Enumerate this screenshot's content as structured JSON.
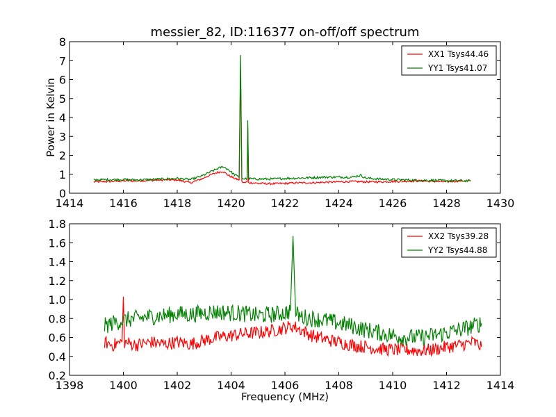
{
  "chart_data": [
    {
      "type": "line",
      "title": "messier_82, ID:116377 on-off/off spectrum",
      "xlabel": "",
      "ylabel": "Power in Kelvin",
      "xlim": [
        1414,
        1430
      ],
      "ylim": [
        0,
        8
      ],
      "xticks": [
        1414,
        1416,
        1418,
        1420,
        1422,
        1424,
        1426,
        1428,
        1430
      ],
      "yticks": [
        0,
        1,
        2,
        3,
        4,
        5,
        6,
        7,
        8
      ],
      "grid": false,
      "legend_position": "top-right",
      "series": [
        {
          "name": "XX1 Tsys44.46",
          "color": "#ff0000",
          "x": [
            1414.9,
            1415.5,
            1416.0,
            1416.5,
            1417.0,
            1417.5,
            1418.0,
            1418.5,
            1418.9,
            1419.2,
            1419.5,
            1419.7,
            1419.9,
            1420.1,
            1420.3,
            1420.35,
            1420.4,
            1420.5,
            1420.6,
            1420.62,
            1420.65,
            1420.8,
            1421.0,
            1421.5,
            1422.0,
            1422.5,
            1423.0,
            1423.5,
            1424.0,
            1424.5,
            1425.0,
            1425.5,
            1426.0,
            1426.5,
            1427.0,
            1427.5,
            1428.0,
            1428.5,
            1428.9
          ],
          "y": [
            0.6,
            0.62,
            0.65,
            0.65,
            0.68,
            0.7,
            0.7,
            0.55,
            0.75,
            0.95,
            1.1,
            1.15,
            0.95,
            0.8,
            0.7,
            6.6,
            0.6,
            0.55,
            0.6,
            3.5,
            0.55,
            0.55,
            0.52,
            0.5,
            0.52,
            0.55,
            0.55,
            0.58,
            0.6,
            0.62,
            0.6,
            0.6,
            0.62,
            0.63,
            0.65,
            0.62,
            0.6,
            0.65,
            0.65
          ]
        },
        {
          "name": "YY1 Tsys41.07",
          "color": "#008000",
          "x": [
            1414.9,
            1415.5,
            1416.0,
            1416.5,
            1417.0,
            1417.5,
            1418.0,
            1418.5,
            1418.9,
            1419.2,
            1419.5,
            1419.7,
            1419.9,
            1420.1,
            1420.3,
            1420.35,
            1420.4,
            1420.5,
            1420.6,
            1420.62,
            1420.65,
            1420.8,
            1421.0,
            1421.5,
            1422.0,
            1422.5,
            1423.0,
            1423.5,
            1424.0,
            1424.5,
            1424.8,
            1425.0,
            1425.5,
            1426.0,
            1426.5,
            1427.0,
            1427.5,
            1428.0,
            1428.5,
            1428.9
          ],
          "y": [
            0.7,
            0.72,
            0.72,
            0.7,
            0.72,
            0.75,
            0.78,
            0.72,
            0.9,
            1.1,
            1.3,
            1.4,
            1.25,
            1.0,
            0.85,
            7.3,
            0.8,
            0.75,
            0.8,
            3.85,
            0.78,
            0.75,
            0.75,
            0.75,
            0.78,
            0.8,
            0.82,
            0.85,
            0.85,
            0.85,
            0.95,
            0.8,
            0.75,
            0.72,
            0.7,
            0.68,
            0.68,
            0.66,
            0.66,
            0.65
          ]
        }
      ]
    },
    {
      "type": "line",
      "title": "",
      "xlabel": "Frequency (MHz)",
      "ylabel": "",
      "xlim": [
        1398,
        1414
      ],
      "ylim": [
        0.2,
        1.8
      ],
      "xticks": [
        1398,
        1400,
        1402,
        1404,
        1406,
        1408,
        1410,
        1412,
        1414
      ],
      "yticks": [
        0.2,
        0.4,
        0.6,
        0.8,
        1.0,
        1.2,
        1.4,
        1.6,
        1.8
      ],
      "ytick_labels": [
        "0.2",
        "0.4",
        "0.6",
        "0.8",
        "1.0",
        "1.2",
        "1.4",
        "1.6",
        "1.8"
      ],
      "grid": false,
      "legend_position": "top-right",
      "series": [
        {
          "name": "XX2 Tsys39.28",
          "color": "#ff0000",
          "x": [
            1399.3,
            1399.6,
            1399.95,
            1400.0,
            1400.05,
            1400.5,
            1401.0,
            1401.5,
            1402.0,
            1402.5,
            1403.0,
            1403.5,
            1404.0,
            1404.5,
            1405.0,
            1405.5,
            1406.0,
            1406.3,
            1406.6,
            1407.0,
            1407.5,
            1408.0,
            1408.5,
            1409.0,
            1409.5,
            1410.0,
            1410.5,
            1411.0,
            1411.5,
            1412.0,
            1412.5,
            1413.0,
            1413.3
          ],
          "y": [
            0.55,
            0.52,
            0.55,
            1.03,
            0.55,
            0.52,
            0.55,
            0.53,
            0.55,
            0.53,
            0.57,
            0.6,
            0.62,
            0.64,
            0.65,
            0.67,
            0.7,
            0.72,
            0.68,
            0.62,
            0.58,
            0.55,
            0.52,
            0.5,
            0.48,
            0.47,
            0.47,
            0.46,
            0.47,
            0.5,
            0.52,
            0.55,
            0.5
          ]
        },
        {
          "name": "YY2 Tsys44.88",
          "color": "#008000",
          "x": [
            1399.3,
            1399.6,
            1400.0,
            1400.5,
            1401.0,
            1401.5,
            1402.0,
            1402.5,
            1403.0,
            1403.5,
            1404.0,
            1404.5,
            1405.0,
            1405.5,
            1406.0,
            1406.2,
            1406.3,
            1406.4,
            1406.6,
            1407.0,
            1407.5,
            1408.0,
            1408.5,
            1409.0,
            1409.5,
            1410.0,
            1410.5,
            1411.0,
            1411.5,
            1412.0,
            1412.5,
            1413.0,
            1413.3
          ],
          "y": [
            0.72,
            0.75,
            0.78,
            0.8,
            0.82,
            0.83,
            0.85,
            0.84,
            0.86,
            0.87,
            0.86,
            0.85,
            0.83,
            0.84,
            0.86,
            0.88,
            1.67,
            0.85,
            0.82,
            0.8,
            0.78,
            0.75,
            0.72,
            0.68,
            0.65,
            0.62,
            0.6,
            0.6,
            0.62,
            0.65,
            0.68,
            0.72,
            0.75
          ]
        }
      ]
    }
  ]
}
